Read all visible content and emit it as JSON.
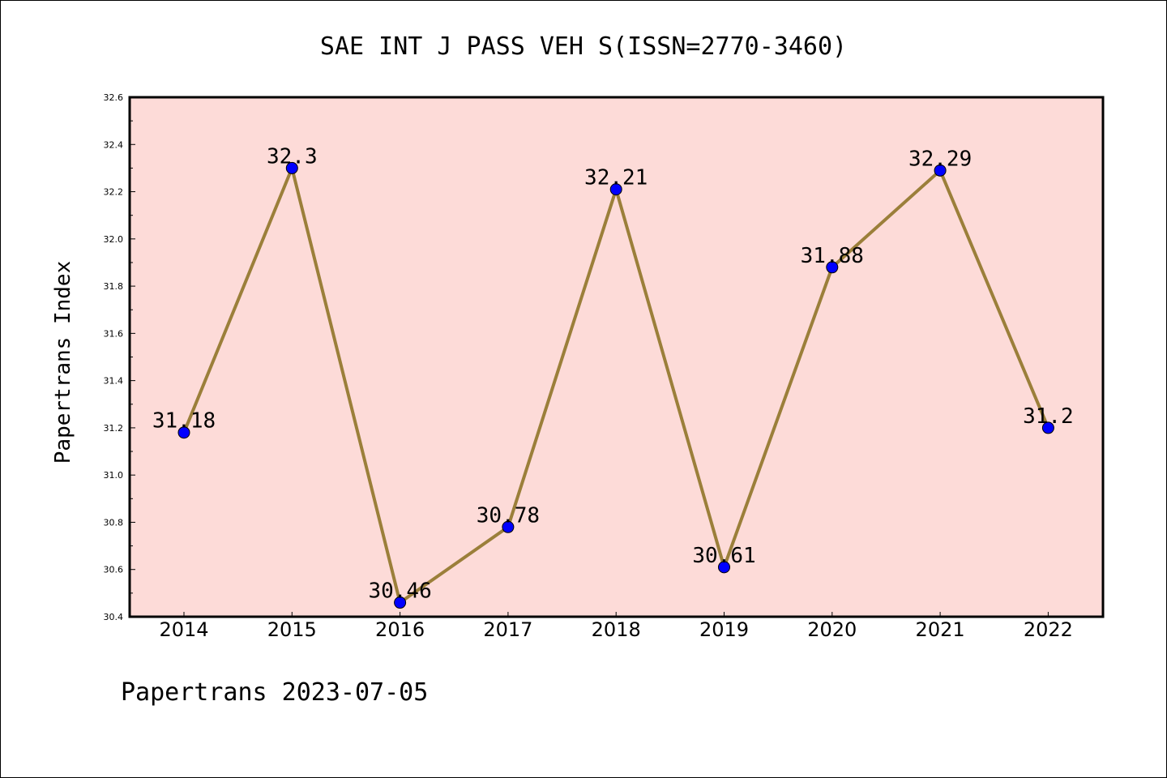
{
  "chart_data": {
    "type": "line",
    "title": "SAE INT J PASS VEH S(ISSN=2770-3460)",
    "ylabel": "Papertrans Index",
    "xlabel": "",
    "categories": [
      "2014",
      "2015",
      "2016",
      "2017",
      "2018",
      "2019",
      "2020",
      "2021",
      "2022"
    ],
    "values": [
      31.18,
      32.3,
      30.46,
      30.78,
      32.21,
      30.61,
      31.88,
      32.29,
      31.2
    ],
    "data_labels": [
      "31.18",
      "32.3",
      "30.46",
      "30.78",
      "32.21",
      "30.61",
      "31.88",
      "32.29",
      "31.2"
    ],
    "ylim": [
      30.4,
      32.6
    ],
    "yticks": [
      "30.4",
      "30.6",
      "30.8",
      "31.0",
      "31.2",
      "31.4",
      "31.6",
      "31.8",
      "32.0",
      "32.2",
      "32.4",
      "32.6"
    ],
    "grid": false,
    "line_color": "#9b7f3a",
    "marker_color": "#0000ff",
    "plot_background": "#fddbd8"
  },
  "footer": {
    "caption": "Papertrans 2023-07-05"
  }
}
